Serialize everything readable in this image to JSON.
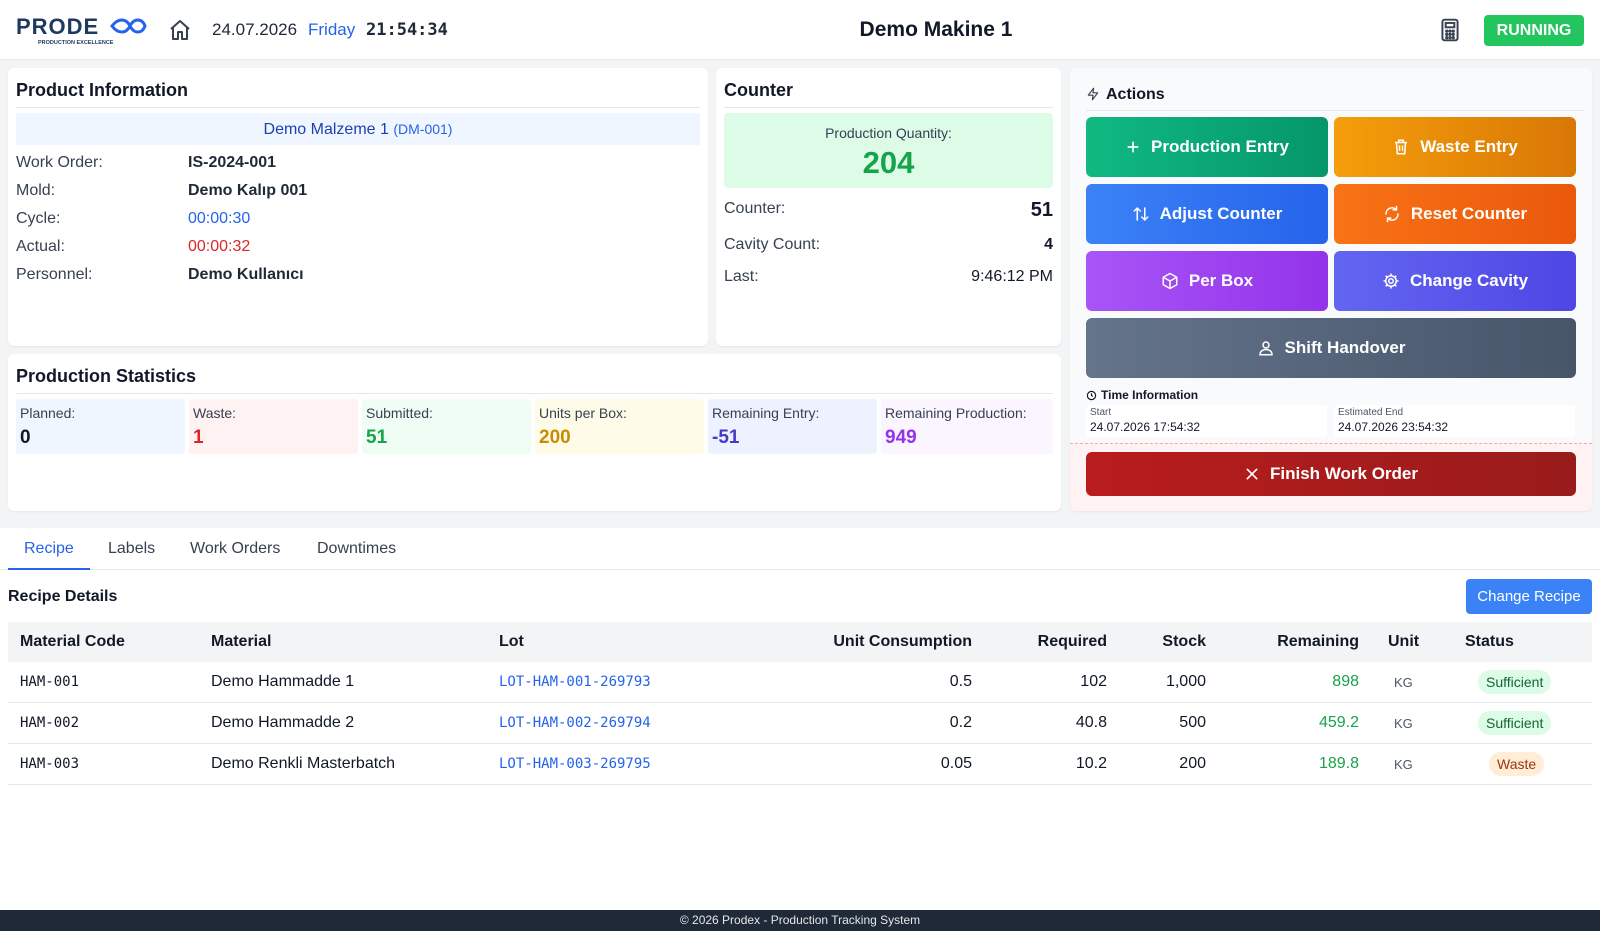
{
  "header": {
    "logo_text": "PRODEX",
    "logo_tagline": "PRODUCTION EXCELLENCE",
    "date": "24.07.2026",
    "day": "Friday",
    "time": "21:54:34",
    "machine_title": "Demo Makine 1",
    "status": "RUNNING",
    "status_color": "#22c55e"
  },
  "product": {
    "title": "Product Information",
    "material_name": "Demo Malzeme 1",
    "material_code": "(DM-001)",
    "rows": [
      {
        "label": "Work Order:",
        "value": "IS-2024-001"
      },
      {
        "label": "Mold:",
        "value": "Demo Kalıp 001"
      },
      {
        "label": "Cycle:",
        "value": "00:00:30"
      },
      {
        "label": "Actual:",
        "value": "00:00:32"
      },
      {
        "label": "Personnel:",
        "value": "Demo Kullanıcı"
      }
    ]
  },
  "counter": {
    "title": "Counter",
    "production_label": "Production Quantity:",
    "production_value": "204",
    "counter_label": "Counter:",
    "counter_value": "51",
    "cavity_label": "Cavity Count:",
    "cavity_value": "4",
    "last_label": "Last:",
    "last_value": "9:46:12 PM"
  },
  "actions": {
    "title": "Actions",
    "production_entry": "Production Entry",
    "waste_entry": "Waste Entry",
    "adjust_counter": "Adjust Counter",
    "reset_counter": "Reset Counter",
    "per_box": "Per Box",
    "change_cavity": "Change Cavity",
    "shift_handover": "Shift Handover",
    "time_info_title": "Time Information",
    "start_label": "Start",
    "start_value": "24.07.2026 17:54:32",
    "end_label": "Estimated End",
    "end_value": "24.07.2026 23:54:32",
    "finish": "Finish Work Order"
  },
  "stats": {
    "title": "Production Statistics",
    "items": [
      {
        "label": "Planned:",
        "value": "0"
      },
      {
        "label": "Waste:",
        "value": "1"
      },
      {
        "label": "Submitted:",
        "value": "51"
      },
      {
        "label": "Units per Box:",
        "value": "200"
      },
      {
        "label": "Remaining Entry:",
        "value": "-51"
      },
      {
        "label": "Remaining Production:",
        "value": "949"
      }
    ]
  },
  "tabs": [
    "Recipe",
    "Labels",
    "Work Orders",
    "Downtimes"
  ],
  "recipe": {
    "title": "Recipe Details",
    "change_button": "Change Recipe",
    "columns": [
      "Material Code",
      "Material",
      "Lot",
      "Unit Consumption",
      "Required",
      "Stock",
      "Remaining",
      "Unit",
      "Status"
    ],
    "rows": [
      {
        "code": "HAM-001",
        "material": "Demo Hammadde 1",
        "lot": "LOT-HAM-001-269793",
        "unit_consumption": "0.5",
        "required": "102",
        "stock": "1,000",
        "remaining": "898",
        "unit": "KG",
        "status": "Sufficient"
      },
      {
        "code": "HAM-002",
        "material": "Demo Hammadde 2",
        "lot": "LOT-HAM-002-269794",
        "unit_consumption": "0.2",
        "required": "40.8",
        "stock": "500",
        "remaining": "459.2",
        "unit": "KG",
        "status": "Sufficient"
      },
      {
        "code": "HAM-003",
        "material": "Demo Renkli Masterbatch",
        "lot": "LOT-HAM-003-269795",
        "unit_consumption": "0.05",
        "required": "10.2",
        "stock": "200",
        "remaining": "189.8",
        "unit": "KG",
        "status": "Waste"
      }
    ]
  },
  "footer": "© 2026 Prodex - Production Tracking System"
}
